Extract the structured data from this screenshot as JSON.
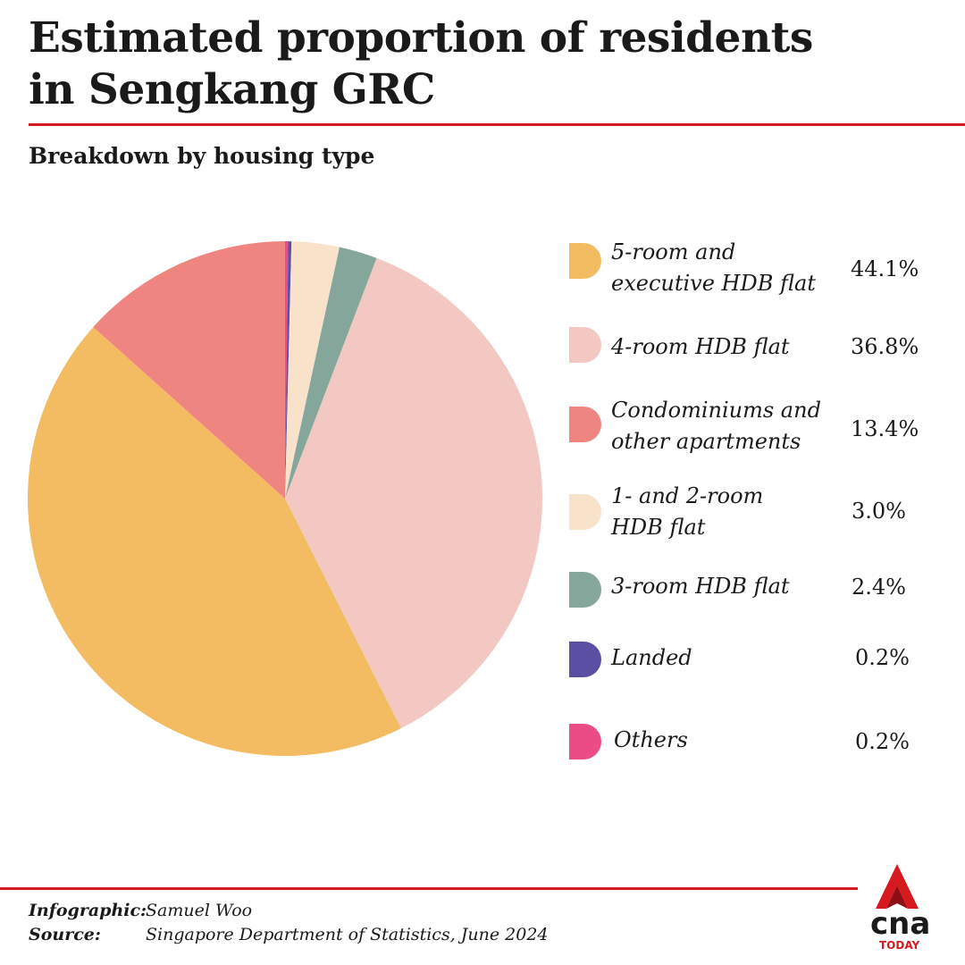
{
  "header": {
    "title_line1": "Estimated proportion of residents",
    "title_line2": "in Sengkang GRC",
    "subtitle": "Breakdown by housing type"
  },
  "chart_data": {
    "type": "pie",
    "title": "Estimated proportion of residents in Sengkang GRC",
    "subtitle": "Breakdown by housing type",
    "slices": [
      {
        "label": "5-room and\nexecutive HDB flat",
        "value": 44.1,
        "display": "44.1%",
        "color": "#f4bc62"
      },
      {
        "label": "4-room HDB flat",
        "value": 36.8,
        "display": "36.8%",
        "color": "#f4c8c2"
      },
      {
        "label": "Condominiums and\nother apartments",
        "value": 13.4,
        "display": "13.4%",
        "color": "#ef8580"
      },
      {
        "label": "1- and 2-room\nHDB flat",
        "value": 3.0,
        "display": "3.0%",
        "color": "#f8e2c9"
      },
      {
        "label": "3-room HDB flat",
        "value": 2.4,
        "display": "2.4%",
        "color": "#85a69b"
      },
      {
        "label": "Landed",
        "value": 0.2,
        "display": "0.2%",
        "color": "#5a4fa3"
      },
      {
        "label": "Others",
        "value": 0.2,
        "display": "0.2%",
        "color": "#ec4c86"
      }
    ],
    "legend_position": "right"
  },
  "footer": {
    "infographic_key": "Infographic:",
    "infographic_value": "Samuel Woo",
    "source_key": "Source:",
    "source_value": "Singapore Department of Statistics, June 2024"
  },
  "logo": {
    "text": "cna",
    "subtext": "TODAY",
    "color": "#d71920"
  }
}
